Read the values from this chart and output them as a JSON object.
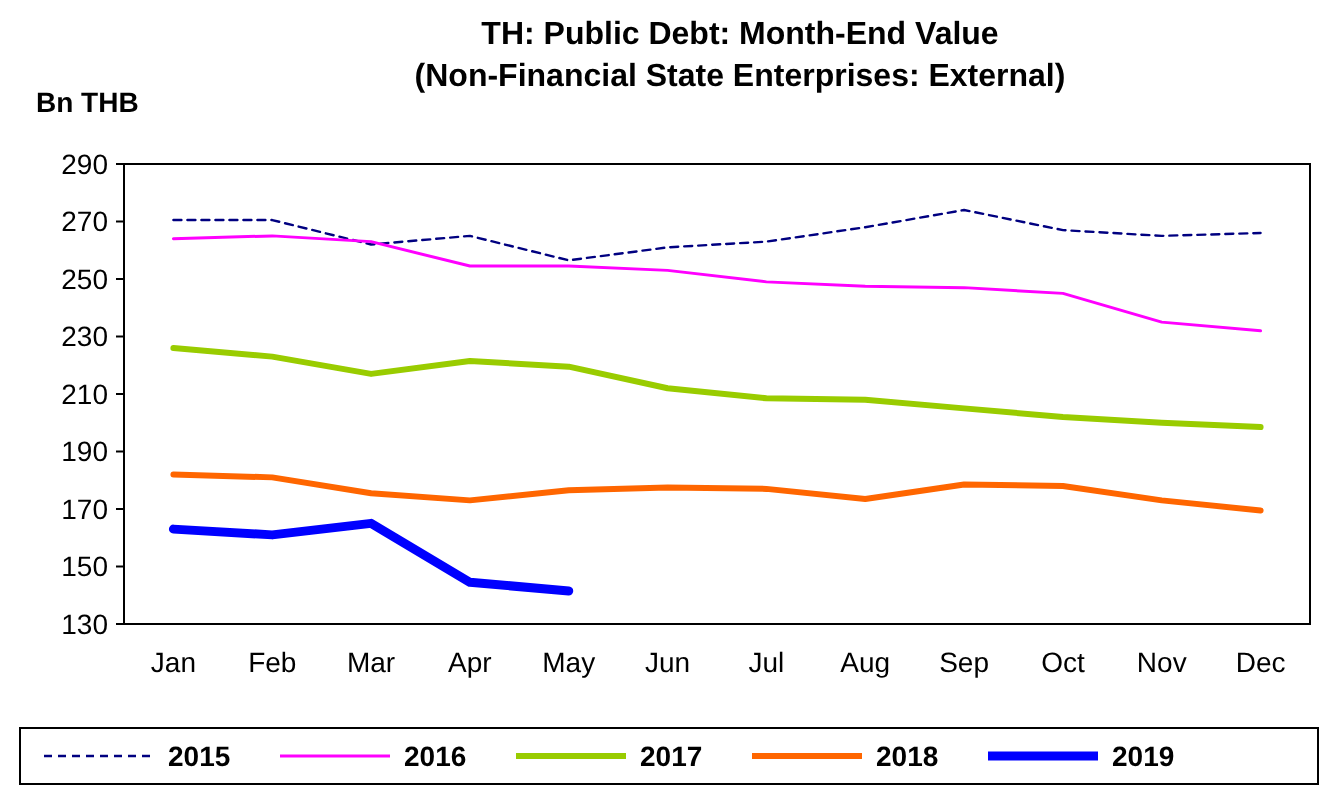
{
  "chart_data": {
    "type": "line",
    "title": "TH: Public Debt: Month-End Value\n(Non-Financial State Enterprises: External)",
    "ylabel": "Bn THB",
    "categories": [
      "Jan",
      "Feb",
      "Mar",
      "Apr",
      "May",
      "Jun",
      "Jul",
      "Aug",
      "Sep",
      "Oct",
      "Nov",
      "Dec"
    ],
    "ylim": [
      130,
      290
    ],
    "yticks": [
      130,
      150,
      170,
      190,
      210,
      230,
      250,
      270,
      290
    ],
    "grid": false,
    "legend": "bottom",
    "marker": "none",
    "series": [
      {
        "name": "2015",
        "color": "#000080",
        "line_style": "dashed",
        "values": [
          270.5,
          270.5,
          262,
          265,
          256.5,
          261,
          263,
          268,
          274,
          267,
          265,
          266
        ]
      },
      {
        "name": "2016",
        "color": "#ff00ff",
        "values": [
          264,
          265,
          263,
          254.5,
          254.5,
          253,
          249,
          247.5,
          247,
          245,
          235,
          232
        ]
      },
      {
        "name": "2017",
        "color": "#99cc00",
        "values": [
          226,
          223,
          217,
          221.5,
          219.5,
          212,
          208.5,
          208,
          205,
          202,
          200,
          198.5
        ]
      },
      {
        "name": "2018",
        "color": "#ff6600",
        "values": [
          182,
          181,
          175.5,
          173,
          176.5,
          177.5,
          177,
          173.5,
          178.5,
          178,
          173,
          169.5
        ]
      },
      {
        "name": "2019",
        "color": "#0000ff",
        "values": [
          163,
          161,
          165,
          144.5,
          141.5,
          null,
          null,
          null,
          null,
          null,
          null,
          null
        ]
      }
    ]
  }
}
